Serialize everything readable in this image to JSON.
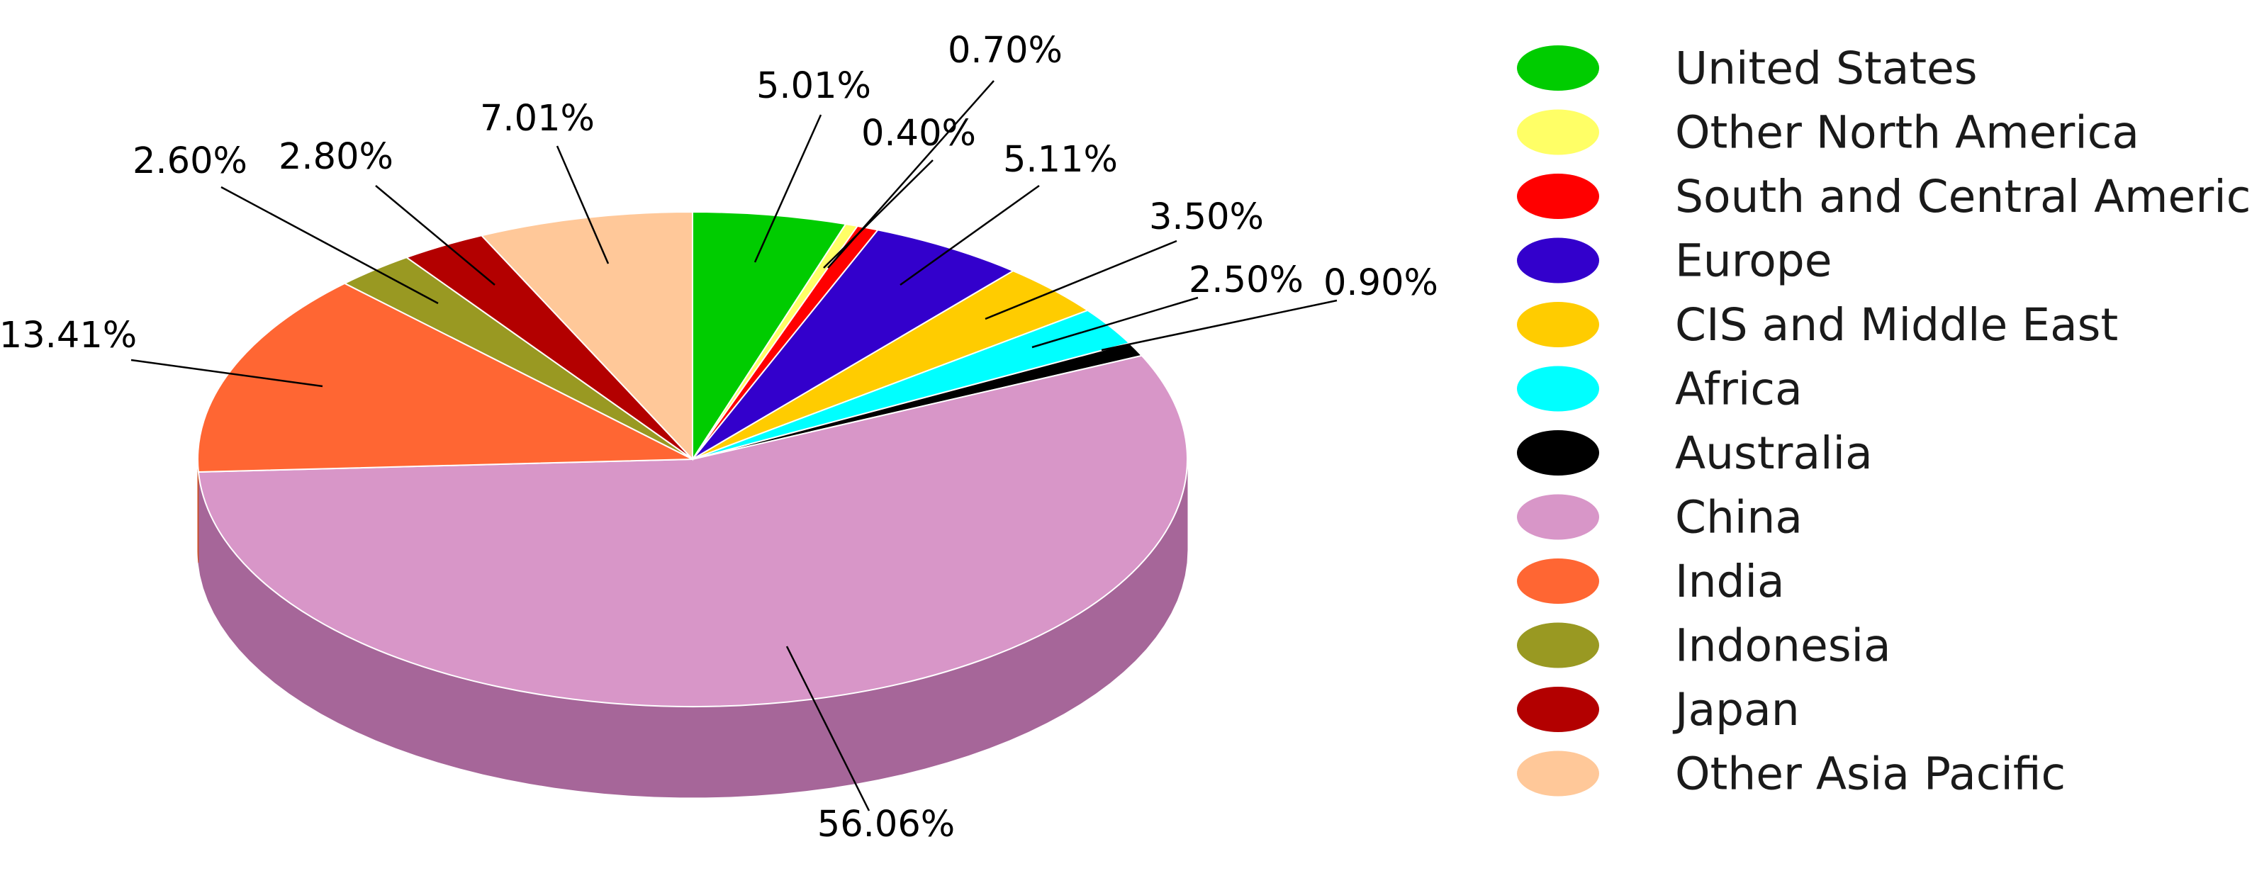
{
  "chart_data": {
    "type": "pie",
    "style": "3d",
    "title": "",
    "legend_position": "right",
    "slices": [
      {
        "label": "United States",
        "value": 5.01,
        "display": "5.01%",
        "color": "#00CC00",
        "side_color": "#009900"
      },
      {
        "label": "Other North America",
        "value": 0.4,
        "display": "0.40%",
        "color": "#FFFF66",
        "side_color": "#CCCC44"
      },
      {
        "label": "South and Central America",
        "value": 0.7,
        "display": "0.70%",
        "color": "#FF0000",
        "side_color": "#CC0000"
      },
      {
        "label": "Europe",
        "value": 5.11,
        "display": "5.11%",
        "color": "#3300CC",
        "side_color": "#220099"
      },
      {
        "label": "CIS and Middle East",
        "value": 3.5,
        "display": "3.50%",
        "color": "#FFCC00",
        "side_color": "#CC9900"
      },
      {
        "label": "Africa",
        "value": 2.5,
        "display": "2.50%",
        "color": "#00FFFF",
        "side_color": "#00BBBB"
      },
      {
        "label": "Australia",
        "value": 0.9,
        "display": "0.90%",
        "color": "#000000",
        "side_color": "#000000"
      },
      {
        "label": "China",
        "value": 56.06,
        "display": "56.06%",
        "color": "#D896C8",
        "side_color": "#A66699"
      },
      {
        "label": "India",
        "value": 13.41,
        "display": "13.41%",
        "color": "#FF6633",
        "side_color": "#CC4F22"
      },
      {
        "label": "Indonesia",
        "value": 2.6,
        "display": "2.60%",
        "color": "#999922",
        "side_color": "#737318"
      },
      {
        "label": "Japan",
        "value": 2.8,
        "display": "2.80%",
        "color": "#B30000",
        "side_color": "#800000"
      },
      {
        "label": "Other Asia Pacific",
        "value": 7.01,
        "display": "7.01%",
        "color": "#FFC899",
        "side_color": "#D9A57A"
      }
    ]
  }
}
